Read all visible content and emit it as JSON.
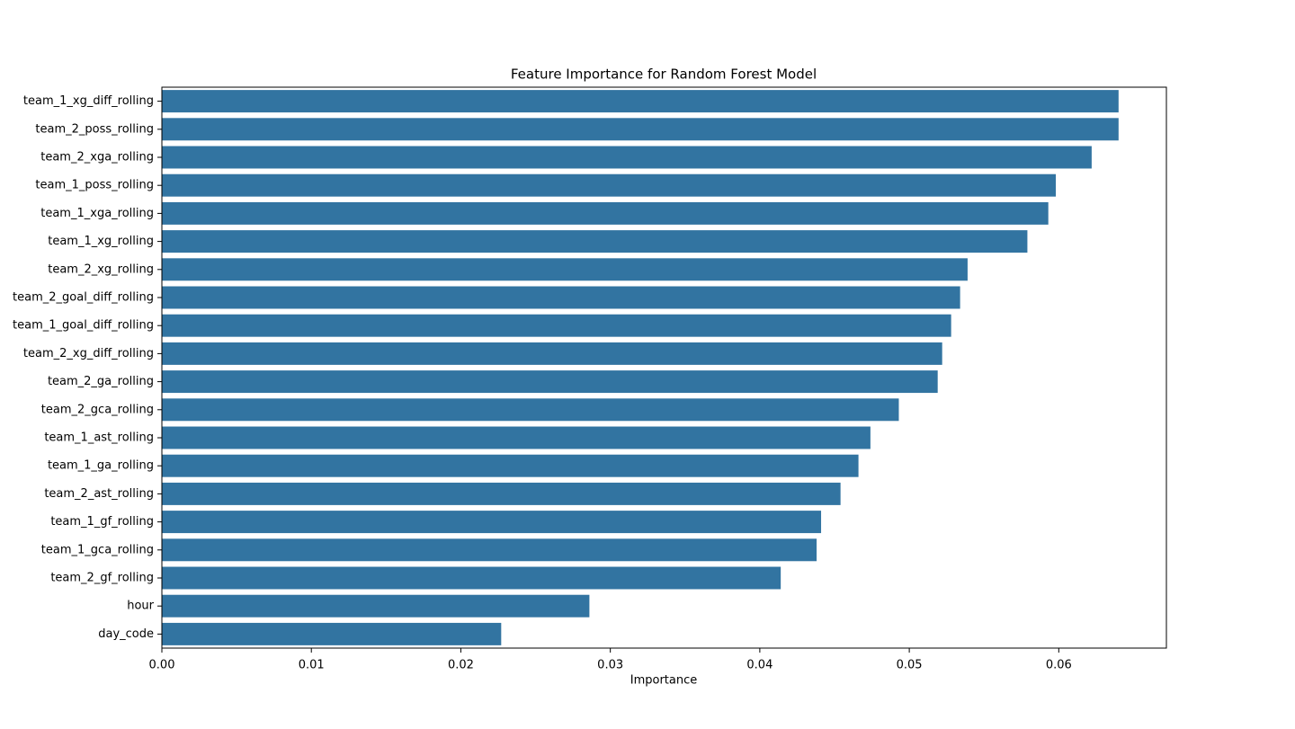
{
  "chart_data": {
    "type": "barh",
    "title": "Feature Importance for Random Forest Model",
    "x_label": "Importance",
    "categories": [
      "team_1_xg_diff_rolling",
      "team_2_poss_rolling",
      "team_2_xga_rolling",
      "team_1_poss_rolling",
      "team_1_xga_rolling",
      "team_1_xg_rolling",
      "team_2_xg_rolling",
      "team_2_goal_diff_rolling",
      "team_1_goal_diff_rolling",
      "team_2_xg_diff_rolling",
      "team_2_ga_rolling",
      "team_2_gca_rolling",
      "team_1_ast_rolling",
      "team_1_ga_rolling",
      "team_2_ast_rolling",
      "team_1_gf_rolling",
      "team_1_gca_rolling",
      "team_2_gf_rolling",
      "hour",
      "day_code"
    ],
    "values": [
      0.064,
      0.064,
      0.0622,
      0.0598,
      0.0593,
      0.0579,
      0.0539,
      0.0534,
      0.0528,
      0.0522,
      0.0519,
      0.0493,
      0.0474,
      0.0466,
      0.0454,
      0.0441,
      0.0438,
      0.0414,
      0.0286,
      0.0227
    ],
    "color": "#3274a1",
    "xlim": [
      0,
      0.0672
    ],
    "xticks": [
      {
        "value": 0,
        "label": "0.00"
      },
      {
        "value": 0.01,
        "label": "0.01"
      },
      {
        "value": 0.02,
        "label": "0.02"
      },
      {
        "value": 0.03,
        "label": "0.03"
      },
      {
        "value": 0.04,
        "label": "0.04"
      },
      {
        "value": 0.05,
        "label": "0.05"
      },
      {
        "value": 0.06,
        "label": "0.06"
      }
    ],
    "grid": false
  }
}
